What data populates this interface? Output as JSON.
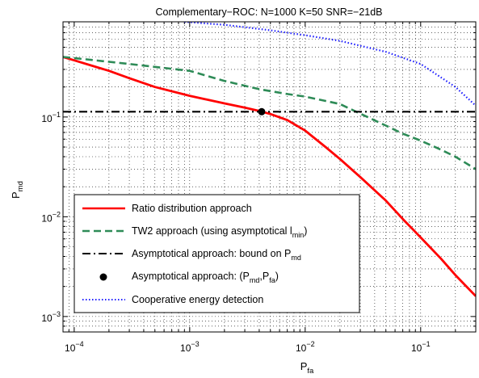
{
  "chart_data": {
    "type": "line",
    "title": "Complementary−ROC: N=1000  K=50  SNR=−21dB",
    "xlabel": {
      "base": "P",
      "sub": "fa"
    },
    "ylabel": {
      "base": "P",
      "sub": "md"
    },
    "xscale": "log",
    "yscale": "log",
    "xlim": [
      8e-05,
      0.3
    ],
    "ylim": [
      0.0007,
      0.9
    ],
    "grid": true,
    "legend_position": "bottom-left",
    "x_ticks": [
      {
        "value": 0.0001,
        "base": "10",
        "exp": "−4"
      },
      {
        "value": 0.001,
        "base": "10",
        "exp": "−3"
      },
      {
        "value": 0.01,
        "base": "10",
        "exp": "−2"
      },
      {
        "value": 0.1,
        "base": "10",
        "exp": "−1"
      }
    ],
    "y_ticks": [
      {
        "value": 0.001,
        "base": "10",
        "exp": "−3"
      },
      {
        "value": 0.01,
        "base": "10",
        "exp": "−2"
      },
      {
        "value": 0.1,
        "base": "10",
        "exp": "−1"
      }
    ],
    "series": [
      {
        "name": "Ratio distribution approach",
        "color": "#ff0000",
        "style": "solid",
        "points": [
          [
            8e-05,
            0.4
          ],
          [
            0.0001,
            0.37
          ],
          [
            0.0002,
            0.29
          ],
          [
            0.0003,
            0.245
          ],
          [
            0.0005,
            0.2
          ],
          [
            0.001,
            0.163
          ],
          [
            0.002,
            0.137
          ],
          [
            0.003,
            0.124
          ],
          [
            0.004,
            0.115
          ],
          [
            0.005,
            0.107
          ],
          [
            0.007,
            0.093
          ],
          [
            0.01,
            0.073
          ],
          [
            0.015,
            0.05
          ],
          [
            0.02,
            0.038
          ],
          [
            0.03,
            0.025
          ],
          [
            0.05,
            0.0145
          ],
          [
            0.07,
            0.0095
          ],
          [
            0.1,
            0.0062
          ],
          [
            0.15,
            0.0038
          ],
          [
            0.2,
            0.0026
          ],
          [
            0.3,
            0.0016
          ]
        ]
      },
      {
        "name": "TW2 approach (using asymptotical l",
        "name_sub": "min",
        "name_tail": ")",
        "color": "#2e8b57",
        "style": "dashed",
        "points": [
          [
            8e-05,
            0.4
          ],
          [
            0.0001,
            0.39
          ],
          [
            0.0003,
            0.34
          ],
          [
            0.001,
            0.29
          ],
          [
            0.002,
            0.23
          ],
          [
            0.004,
            0.19
          ],
          [
            0.007,
            0.17
          ],
          [
            0.01,
            0.16
          ],
          [
            0.02,
            0.135
          ],
          [
            0.03,
            0.108
          ],
          [
            0.05,
            0.082
          ],
          [
            0.07,
            0.068
          ],
          [
            0.1,
            0.058
          ],
          [
            0.15,
            0.047
          ],
          [
            0.2,
            0.04
          ],
          [
            0.3,
            0.03
          ]
        ]
      },
      {
        "name": "Asymptotical approach: bound on P",
        "name_sub": "md",
        "color": "#000000",
        "style": "dashdot",
        "points": [
          [
            8e-05,
            0.113
          ],
          [
            0.3,
            0.113
          ]
        ]
      },
      {
        "name": "Asymptotical approach: (P",
        "name_sub": "md",
        "name_mid": ",P",
        "name_sub2": "fa",
        "name_tail": ")",
        "color": "#000000",
        "style": "marker",
        "points": [
          [
            0.0042,
            0.113
          ]
        ]
      },
      {
        "name": "Cooperative energy detection",
        "color": "#1f1fff",
        "style": "dotted",
        "points": [
          [
            0.0009,
            0.9
          ],
          [
            0.002,
            0.84
          ],
          [
            0.005,
            0.74
          ],
          [
            0.01,
            0.66
          ],
          [
            0.02,
            0.58
          ],
          [
            0.05,
            0.45
          ],
          [
            0.1,
            0.34
          ],
          [
            0.2,
            0.2
          ],
          [
            0.3,
            0.13
          ]
        ]
      }
    ]
  }
}
